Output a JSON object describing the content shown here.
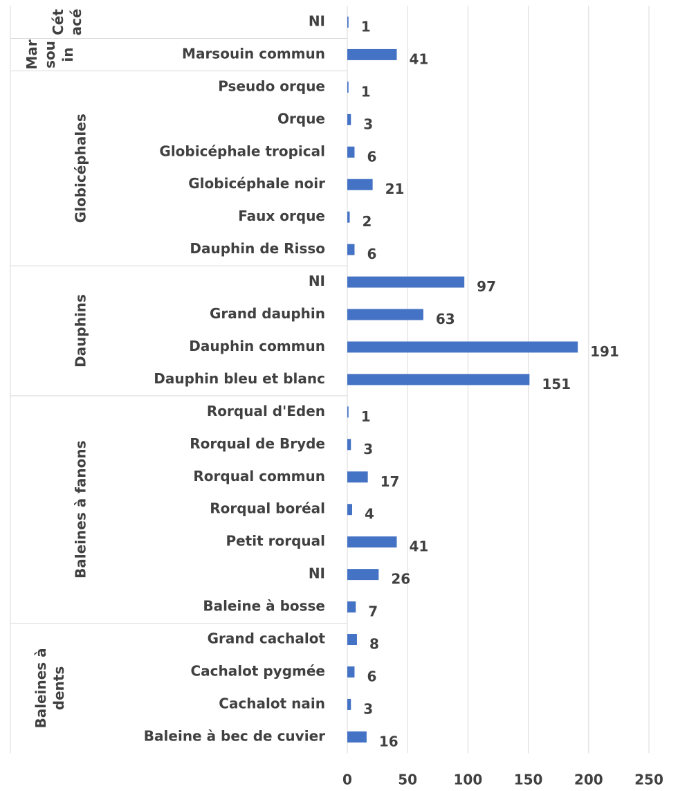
{
  "chart_data": {
    "type": "bar",
    "orientation": "horizontal",
    "categories": [
      "NI",
      "Marsouin commun",
      "Pseudo orque",
      "Orque",
      "Globicéphale tropical",
      "Globicéphale noir",
      "Faux orque",
      "Dauphin de Risso",
      "NI",
      "Grand dauphin",
      "Dauphin commun",
      "Dauphin bleu et blanc",
      "Rorqual d'Eden",
      "Rorqual de Bryde",
      "Rorqual commun",
      "Rorqual boréal",
      "Petit rorqual",
      "NI",
      "Baleine à bosse",
      "Grand cachalot",
      "Cachalot pygmée",
      "Cachalot nain",
      "Baleine à bec de cuvier"
    ],
    "values": [
      1,
      41,
      1,
      3,
      6,
      21,
      2,
      6,
      97,
      63,
      191,
      151,
      1,
      3,
      17,
      4,
      41,
      26,
      7,
      8,
      6,
      3,
      16
    ],
    "groups": [
      {
        "name": "Cétacé",
        "count": 1
      },
      {
        "name": "Marsouin",
        "count": 1
      },
      {
        "name": "Globicéphales",
        "count": 6
      },
      {
        "name": "Dauphins",
        "count": 4
      },
      {
        "name": "Baleines à fanons",
        "count": 7
      },
      {
        "name": "Baleines à dents",
        "count": 4
      }
    ],
    "color": "#4472c4",
    "xlim": [
      0,
      250
    ],
    "xticks": [
      0,
      50,
      100,
      150,
      200,
      250
    ],
    "grid": true
  }
}
